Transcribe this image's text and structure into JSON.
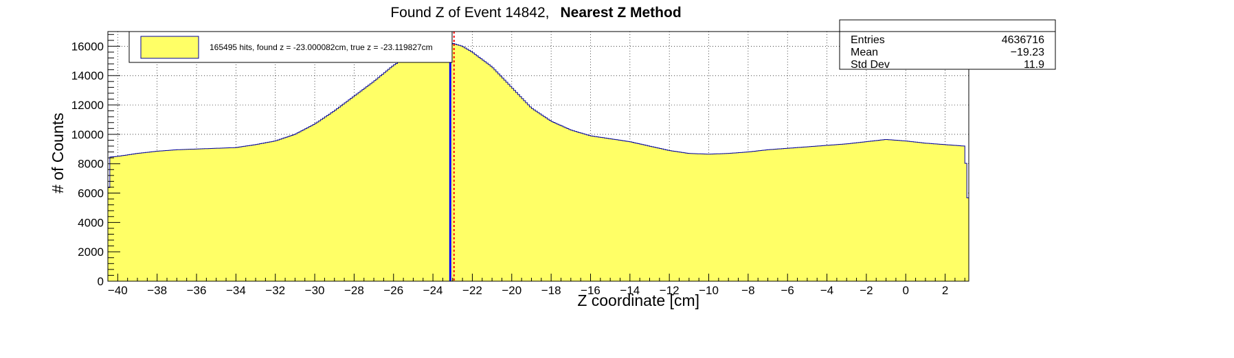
{
  "title": {
    "prefix": "Found Z of Event 14842,",
    "method": "Nearest Z Method"
  },
  "colors": {
    "fill": "#ffff66",
    "outline": "#000099",
    "found_line": "#0000ff",
    "true_line": "#ff0000"
  },
  "stats": {
    "rows": [
      {
        "label": "Entries",
        "value": "4636716"
      },
      {
        "label": "Mean",
        "value": "−19.23"
      },
      {
        "label": "Std Dev",
        "value": "11.9"
      }
    ]
  },
  "legend": {
    "text": "165495 hits, found z = -23.000082cm, true z = -23.119827cm"
  },
  "chart_data": {
    "type": "area",
    "xlabel": "Z coordinate [cm]",
    "ylabel": "# of Counts",
    "xlim": [
      -40.5,
      3.2
    ],
    "ylim": [
      0,
      17000
    ],
    "grid": true,
    "grid_style": "dotted",
    "legend_position": "top-left",
    "x_ticks": [
      -40,
      -38,
      -36,
      -34,
      -32,
      -30,
      -28,
      -26,
      -24,
      -22,
      -20,
      -18,
      -16,
      -14,
      -12,
      -10,
      -8,
      -6,
      -4,
      -2,
      0,
      2
    ],
    "x_tick_labels": [
      "−40",
      "−38",
      "−36",
      "−34",
      "−32",
      "−30",
      "−28",
      "−26",
      "−24",
      "−22",
      "−20",
      "−18",
      "−16",
      "−14",
      "−12",
      "−10",
      "−8",
      "−6",
      "−4",
      "−2",
      "0",
      "2"
    ],
    "y_ticks": [
      0,
      2000,
      4000,
      6000,
      8000,
      10000,
      12000,
      14000,
      16000
    ],
    "y_tick_labels": [
      "0",
      "2000",
      "4000",
      "6000",
      "8000",
      "10000",
      "12000",
      "14000",
      "16000"
    ],
    "found_z": -23.000082,
    "true_z": -23.119827,
    "x": [
      -40.5,
      -40.4,
      -40.0,
      -39.0,
      -38.0,
      -37.0,
      -36.0,
      -35.0,
      -34.0,
      -33.0,
      -32.0,
      -31.0,
      -30.0,
      -29.0,
      -28.0,
      -27.0,
      -26.0,
      -25.0,
      -24.0,
      -23.5,
      -23.2,
      -23.0,
      -22.5,
      -22.0,
      -21.0,
      -20.0,
      -19.0,
      -18.0,
      -17.0,
      -16.0,
      -15.0,
      -14.0,
      -13.0,
      -12.0,
      -11.0,
      -10.0,
      -9.0,
      -8.0,
      -7.0,
      -6.0,
      -5.0,
      -4.0,
      -3.0,
      -2.0,
      -1.0,
      0.0,
      1.0,
      2.0,
      3.0,
      3.2
    ],
    "y": [
      4300,
      8450,
      8500,
      8700,
      8850,
      8950,
      9000,
      9050,
      9100,
      9300,
      9550,
      10000,
      10700,
      11600,
      12600,
      13600,
      14700,
      15500,
      15900,
      16000,
      16000,
      16200,
      16000,
      15600,
      14600,
      13200,
      11800,
      10900,
      10300,
      9900,
      9700,
      9500,
      9200,
      8900,
      8700,
      8650,
      8700,
      8800,
      8950,
      9050,
      9150,
      9250,
      9350,
      9500,
      9650,
      9550,
      9400,
      9300,
      9200,
      4500
    ]
  }
}
